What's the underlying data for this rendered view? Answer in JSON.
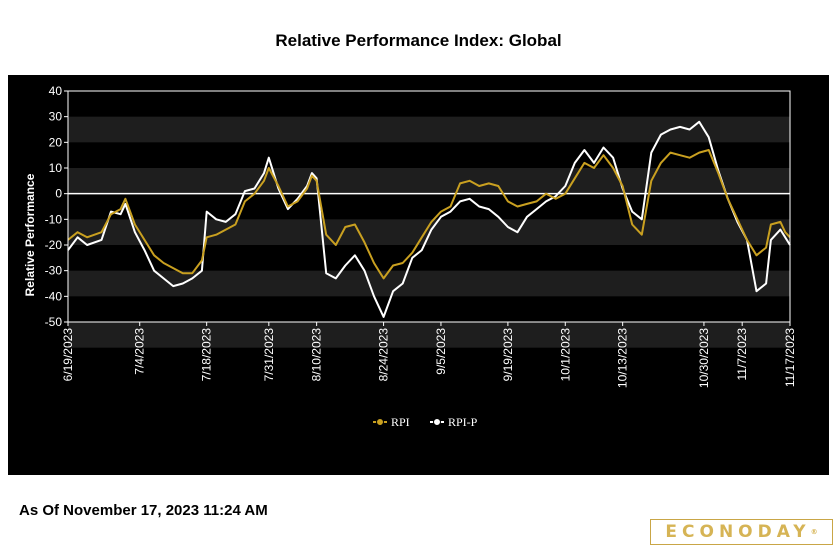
{
  "page": {
    "title": "Relative Performance Index: Global",
    "asof": "As Of November 17, 2023 11:24 AM",
    "logo": "ECONODAY",
    "logo_mark": "®"
  },
  "colors": {
    "rpi": "#c9a020",
    "rpi_p": "#ffffff",
    "background": "#000000",
    "band": "#1e1e1e",
    "logo": "#d6b455"
  },
  "chart_data": {
    "type": "line",
    "title": "Relative Performance Index: Global",
    "ylabel": "Relative Performance",
    "xlabel": "",
    "ylim": [
      -50,
      40
    ],
    "yticks": [
      40,
      30,
      20,
      10,
      0,
      -10,
      -20,
      -30,
      -40,
      -50
    ],
    "reference_line": 0,
    "grid": "alternating horizontal bands",
    "legend": "bottom-center",
    "x_start": "6/19/2023",
    "x_end": "11/17/2023",
    "x_ticks": [
      "6/19/2023",
      "7/4/2023",
      "7/18/2023",
      "7/31/2023",
      "8/10/2023",
      "8/24/2023",
      "9/5/2023",
      "9/19/2023",
      "10/1/2023",
      "10/13/2023",
      "10/30/2023",
      "11/7/2023",
      "11/17/2023"
    ],
    "series": [
      {
        "name": "RPI",
        "points": [
          [
            "6/19/2023",
            -18
          ],
          [
            "6/21/2023",
            -15
          ],
          [
            "6/23/2023",
            -17
          ],
          [
            "6/26/2023",
            -15
          ],
          [
            "6/28/2023",
            -8
          ],
          [
            "6/30/2023",
            -6
          ],
          [
            "7/1/2023",
            -2
          ],
          [
            "7/3/2023",
            -12
          ],
          [
            "7/5/2023",
            -18
          ],
          [
            "7/7/2023",
            -24
          ],
          [
            "7/9/2023",
            -27
          ],
          [
            "7/11/2023",
            -29
          ],
          [
            "7/13/2023",
            -31
          ],
          [
            "7/15/2023",
            -31
          ],
          [
            "7/17/2023",
            -26
          ],
          [
            "7/18/2023",
            -17
          ],
          [
            "7/20/2023",
            -16
          ],
          [
            "7/22/2023",
            -14
          ],
          [
            "7/24/2023",
            -12
          ],
          [
            "7/26/2023",
            -3
          ],
          [
            "7/28/2023",
            0
          ],
          [
            "7/30/2023",
            5
          ],
          [
            "7/31/2023",
            10
          ],
          [
            "8/2/2023",
            3
          ],
          [
            "8/4/2023",
            -5
          ],
          [
            "8/6/2023",
            -3
          ],
          [
            "8/8/2023",
            2
          ],
          [
            "8/9/2023",
            7
          ],
          [
            "8/10/2023",
            5
          ],
          [
            "8/12/2023",
            -16
          ],
          [
            "8/14/2023",
            -20
          ],
          [
            "8/16/2023",
            -13
          ],
          [
            "8/18/2023",
            -12
          ],
          [
            "8/20/2023",
            -19
          ],
          [
            "8/22/2023",
            -27
          ],
          [
            "8/24/2023",
            -33
          ],
          [
            "8/26/2023",
            -28
          ],
          [
            "8/28/2023",
            -27
          ],
          [
            "8/30/2023",
            -23
          ],
          [
            "9/1/2023",
            -17
          ],
          [
            "9/3/2023",
            -11
          ],
          [
            "9/5/2023",
            -7
          ],
          [
            "9/7/2023",
            -5
          ],
          [
            "9/9/2023",
            4
          ],
          [
            "9/11/2023",
            5
          ],
          [
            "9/13/2023",
            3
          ],
          [
            "9/15/2023",
            4
          ],
          [
            "9/17/2023",
            3
          ],
          [
            "9/19/2023",
            -3
          ],
          [
            "9/21/2023",
            -5
          ],
          [
            "9/23/2023",
            -4
          ],
          [
            "9/25/2023",
            -3
          ],
          [
            "9/27/2023",
            0
          ],
          [
            "9/29/2023",
            -2
          ],
          [
            "10/1/2023",
            0
          ],
          [
            "10/3/2023",
            6
          ],
          [
            "10/5/2023",
            12
          ],
          [
            "10/7/2023",
            10
          ],
          [
            "10/9/2023",
            15
          ],
          [
            "10/11/2023",
            10
          ],
          [
            "10/13/2023",
            3
          ],
          [
            "10/15/2023",
            -12
          ],
          [
            "10/17/2023",
            -16
          ],
          [
            "10/19/2023",
            5
          ],
          [
            "10/21/2023",
            12
          ],
          [
            "10/23/2023",
            16
          ],
          [
            "10/25/2023",
            15
          ],
          [
            "10/27/2023",
            14
          ],
          [
            "10/29/2023",
            16
          ],
          [
            "10/31/2023",
            17
          ],
          [
            "11/2/2023",
            8
          ],
          [
            "11/4/2023",
            -2
          ],
          [
            "11/6/2023",
            -10
          ],
          [
            "11/8/2023",
            -18
          ],
          [
            "11/10/2023",
            -24
          ],
          [
            "11/12/2023",
            -21
          ],
          [
            "11/13/2023",
            -12
          ],
          [
            "11/15/2023",
            -11
          ],
          [
            "11/16/2023",
            -15
          ],
          [
            "11/17/2023",
            -17
          ]
        ]
      },
      {
        "name": "RPI-P",
        "points": [
          [
            "6/19/2023",
            -22
          ],
          [
            "6/21/2023",
            -17
          ],
          [
            "6/23/2023",
            -20
          ],
          [
            "6/26/2023",
            -18
          ],
          [
            "6/28/2023",
            -7
          ],
          [
            "6/30/2023",
            -8
          ],
          [
            "7/1/2023",
            -4
          ],
          [
            "7/3/2023",
            -15
          ],
          [
            "7/5/2023",
            -22
          ],
          [
            "7/7/2023",
            -30
          ],
          [
            "7/9/2023",
            -33
          ],
          [
            "7/11/2023",
            -36
          ],
          [
            "7/13/2023",
            -35
          ],
          [
            "7/15/2023",
            -33
          ],
          [
            "7/17/2023",
            -30
          ],
          [
            "7/18/2023",
            -7
          ],
          [
            "7/20/2023",
            -10
          ],
          [
            "7/22/2023",
            -11
          ],
          [
            "7/24/2023",
            -8
          ],
          [
            "7/26/2023",
            1
          ],
          [
            "7/28/2023",
            2
          ],
          [
            "7/30/2023",
            8
          ],
          [
            "7/31/2023",
            14
          ],
          [
            "8/2/2023",
            2
          ],
          [
            "8/4/2023",
            -6
          ],
          [
            "8/6/2023",
            -2
          ],
          [
            "8/8/2023",
            3
          ],
          [
            "8/9/2023",
            8
          ],
          [
            "8/10/2023",
            6
          ],
          [
            "8/12/2023",
            -31
          ],
          [
            "8/14/2023",
            -33
          ],
          [
            "8/16/2023",
            -28
          ],
          [
            "8/18/2023",
            -24
          ],
          [
            "8/20/2023",
            -30
          ],
          [
            "8/22/2023",
            -40
          ],
          [
            "8/24/2023",
            -48
          ],
          [
            "8/26/2023",
            -38
          ],
          [
            "8/28/2023",
            -35
          ],
          [
            "8/30/2023",
            -25
          ],
          [
            "9/1/2023",
            -22
          ],
          [
            "9/3/2023",
            -14
          ],
          [
            "9/5/2023",
            -9
          ],
          [
            "9/7/2023",
            -7
          ],
          [
            "9/9/2023",
            -3
          ],
          [
            "9/11/2023",
            -2
          ],
          [
            "9/13/2023",
            -5
          ],
          [
            "9/15/2023",
            -6
          ],
          [
            "9/17/2023",
            -9
          ],
          [
            "9/19/2023",
            -13
          ],
          [
            "9/21/2023",
            -15
          ],
          [
            "9/23/2023",
            -9
          ],
          [
            "9/25/2023",
            -6
          ],
          [
            "9/27/2023",
            -3
          ],
          [
            "9/29/2023",
            -1
          ],
          [
            "10/1/2023",
            3
          ],
          [
            "10/3/2023",
            12
          ],
          [
            "10/5/2023",
            17
          ],
          [
            "10/7/2023",
            12
          ],
          [
            "10/9/2023",
            18
          ],
          [
            "10/11/2023",
            14
          ],
          [
            "10/13/2023",
            2
          ],
          [
            "10/15/2023",
            -7
          ],
          [
            "10/17/2023",
            -10
          ],
          [
            "10/19/2023",
            16
          ],
          [
            "10/21/2023",
            23
          ],
          [
            "10/23/2023",
            25
          ],
          [
            "10/25/2023",
            26
          ],
          [
            "10/27/2023",
            25
          ],
          [
            "10/29/2023",
            28
          ],
          [
            "10/31/2023",
            22
          ],
          [
            "11/2/2023",
            9
          ],
          [
            "11/4/2023",
            -2
          ],
          [
            "11/6/2023",
            -11
          ],
          [
            "11/8/2023",
            -18
          ],
          [
            "11/10/2023",
            -38
          ],
          [
            "11/12/2023",
            -35
          ],
          [
            "11/13/2023",
            -18
          ],
          [
            "11/15/2023",
            -14
          ],
          [
            "11/16/2023",
            -17
          ],
          [
            "11/17/2023",
            -20
          ]
        ]
      }
    ]
  }
}
